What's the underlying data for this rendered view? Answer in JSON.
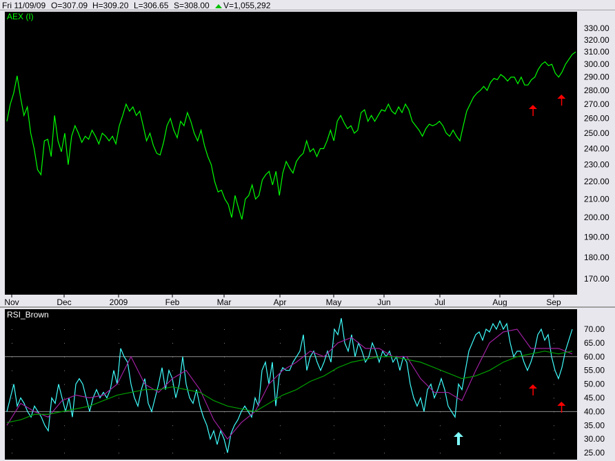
{
  "header": {
    "date": "Fri 11/09/09",
    "open": "O=307.09",
    "high": "H=309.20",
    "low": "L=306.65",
    "close": "S=308.00",
    "volume": "V=1,055,292",
    "up_color": "#00c000"
  },
  "chart_data": [
    {
      "type": "line",
      "title": "AEX (I)",
      "yscale": "log",
      "ylim": [
        165,
        335
      ],
      "xlim": [
        "2008-10-27",
        "2009-09-11"
      ],
      "yticks": [
        "330.00",
        "320.00",
        "310.00",
        "300.00",
        "290.00",
        "280.00",
        "270.00",
        "260.00",
        "250.00",
        "240.00",
        "230.00",
        "220.00",
        "210.00",
        "200.00",
        "190.00",
        "180.00",
        "170.00"
      ],
      "xticks": [
        "Nov",
        "Dec",
        "2009",
        "Feb",
        "Mar",
        "Apr",
        "May",
        "Jun",
        "Jul",
        "Aug",
        "Sep"
      ],
      "grid": false,
      "background": "#000000",
      "series": [
        {
          "color": "#00ff00",
          "values": [
            258,
            270,
            278,
            291,
            275,
            262,
            268,
            250,
            240,
            227,
            224,
            245,
            246,
            235,
            262,
            245,
            238,
            250,
            230,
            248,
            255,
            250,
            244,
            248,
            246,
            252,
            248,
            243,
            250,
            248,
            245,
            248,
            243,
            255,
            262,
            270,
            265,
            268,
            262,
            265,
            255,
            245,
            250,
            242,
            237,
            236,
            244,
            255,
            260,
            252,
            247,
            258,
            255,
            264,
            258,
            250,
            245,
            252,
            242,
            235,
            230,
            220,
            214,
            215,
            210,
            207,
            200,
            212,
            205,
            199,
            210,
            212,
            218,
            210,
            212,
            221,
            224,
            226,
            218,
            226,
            212,
            225,
            232,
            228,
            225,
            232,
            235,
            237,
            245,
            238,
            240,
            235,
            240,
            240,
            245,
            252,
            245,
            258,
            262,
            257,
            253,
            255,
            250,
            252,
            264,
            266,
            258,
            262,
            258,
            262,
            266,
            265,
            270,
            265,
            263,
            268,
            264,
            270,
            266,
            258,
            255,
            252,
            248,
            253,
            256,
            255,
            256,
            258,
            255,
            250,
            248,
            252,
            248,
            245,
            255,
            265,
            270,
            275,
            278,
            280,
            283,
            280,
            286,
            289,
            288,
            292,
            290,
            287,
            290,
            290,
            285,
            290,
            284,
            284,
            288,
            290,
            296,
            300,
            302,
            299,
            300,
            293,
            290,
            294,
            300,
            304,
            308,
            310
          ]
        }
      ],
      "annotations": [
        {
          "type": "arrow-up",
          "color": "#ff0000",
          "date": "2009-08-18"
        },
        {
          "type": "arrow-up",
          "color": "#ff0000",
          "date": "2009-09-03"
        }
      ]
    },
    {
      "type": "line",
      "title": "RSI_Brown",
      "ylim": [
        23,
        73
      ],
      "xlim": [
        "2008-10-27",
        "2009-09-11"
      ],
      "yticks": [
        "70.00",
        "65.00",
        "60.00",
        "55.00",
        "50.00",
        "45.00",
        "40.00",
        "35.00",
        "30.00",
        "25.00"
      ],
      "hlines": [
        60,
        40
      ],
      "grid": "dotted",
      "background": "#000000",
      "series": [
        {
          "color": "#40ffff",
          "values": [
            40,
            45,
            50,
            42,
            45,
            43,
            40,
            38,
            42,
            40,
            38,
            35,
            33,
            45,
            43,
            50,
            45,
            40,
            45,
            38,
            50,
            52,
            50,
            45,
            40,
            45,
            48,
            45,
            47,
            45,
            48,
            55,
            50,
            63,
            60,
            58,
            50,
            45,
            42,
            48,
            52,
            43,
            40,
            45,
            50,
            56,
            48,
            55,
            52,
            45,
            50,
            60,
            50,
            45,
            43,
            48,
            42,
            38,
            35,
            30,
            33,
            28,
            33,
            30,
            25,
            32,
            35,
            37,
            40,
            42,
            40,
            38,
            45,
            42,
            55,
            58,
            50,
            58,
            42,
            53,
            56,
            55,
            55,
            58,
            60,
            62,
            68,
            55,
            60,
            62,
            58,
            55,
            58,
            62,
            58,
            70,
            68,
            74,
            65,
            62,
            68,
            60,
            65,
            62,
            58,
            60,
            65,
            62,
            58,
            62,
            60,
            62,
            58,
            60,
            55,
            60,
            58,
            50,
            45,
            42,
            45,
            40,
            48,
            50,
            45,
            48,
            52,
            48,
            42,
            40,
            38,
            50,
            48,
            55,
            62,
            65,
            68,
            69,
            66,
            70,
            69,
            72,
            70,
            73,
            70,
            72,
            65,
            60,
            62,
            62,
            58,
            55,
            58,
            62,
            68,
            70,
            66,
            68,
            60,
            55,
            52,
            56,
            62,
            66,
            70
          ]
        },
        {
          "color": "#a020a0",
          "values": [
            35,
            43,
            40,
            38,
            44,
            46,
            45,
            46,
            50,
            60,
            50,
            47,
            52,
            55,
            48,
            37,
            30,
            36,
            40,
            50,
            55,
            58,
            62,
            60,
            65,
            67,
            63,
            63,
            60,
            60,
            52,
            47,
            47,
            44,
            55,
            65,
            69,
            70,
            63,
            63,
            63,
            61
          ]
        },
        {
          "color": "#00a000",
          "values": [
            36,
            37,
            39,
            39,
            40,
            41,
            42,
            44,
            46,
            47,
            48,
            48,
            49,
            48,
            47,
            44,
            42,
            41,
            40,
            43,
            46,
            48,
            51,
            53,
            56,
            58,
            59,
            60,
            60,
            59,
            58,
            56,
            54,
            52,
            53,
            55,
            58,
            60,
            61,
            62,
            61,
            62
          ]
        }
      ],
      "annotations": [
        {
          "type": "arrow-up",
          "color": "#80ffff",
          "date": "2009-07-09"
        },
        {
          "type": "arrow-up",
          "color": "#ff0000",
          "date": "2009-08-18"
        },
        {
          "type": "arrow-up",
          "color": "#ff0000",
          "date": "2009-09-03"
        }
      ]
    }
  ]
}
